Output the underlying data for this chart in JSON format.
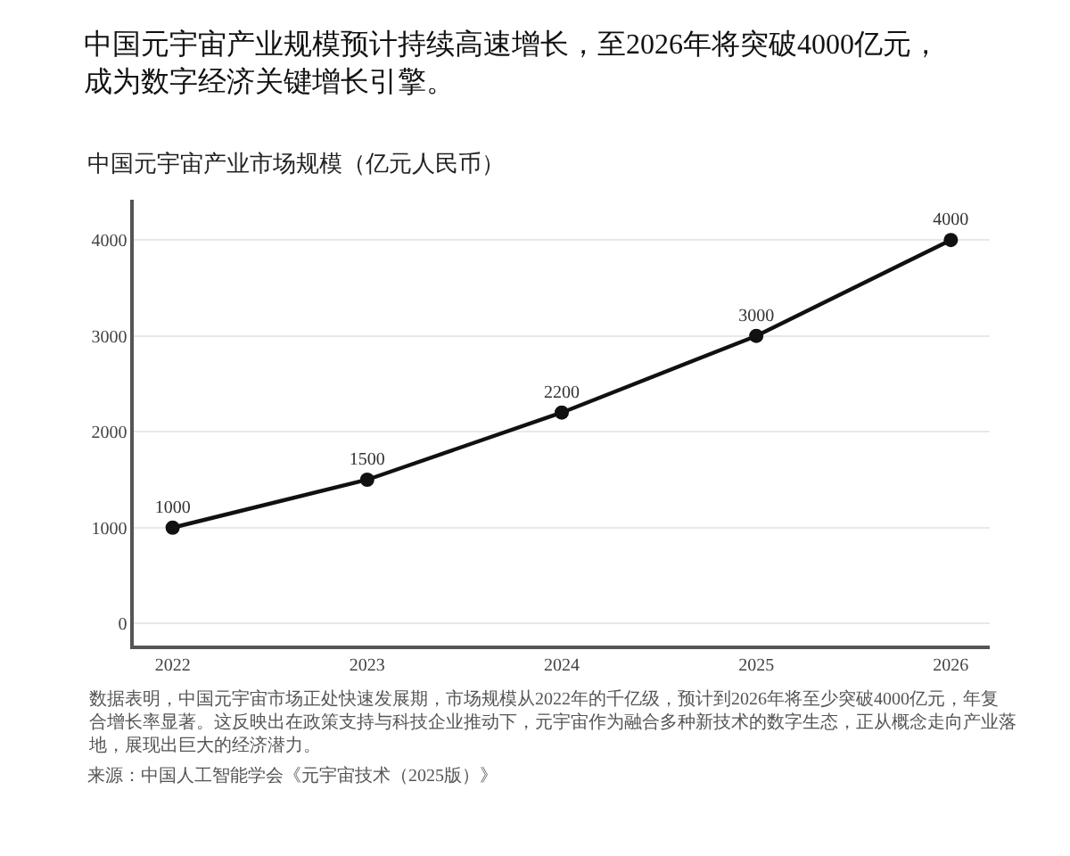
{
  "chart_data": {
    "type": "line",
    "title": "中国元宇宙产业规模预计持续高速增长，至2026年将突破4000亿元，成为数字经济关键增长引擎。",
    "subtitle": "中国元宇宙产业市场规模（亿元人民币）",
    "x": [
      2022,
      2023,
      2024,
      2025,
      2026
    ],
    "values": [
      1000,
      1500,
      2200,
      3000,
      4000
    ],
    "color": "#111111",
    "xlim": [
      2021.8,
      2026.2
    ],
    "xticks": [
      2022,
      2023,
      2024,
      2025,
      2026
    ],
    "ylim": [
      -230,
      4420
    ],
    "yticks": [
      0,
      1000,
      2000,
      3000,
      4000
    ],
    "grid": "y",
    "marker": "circle",
    "line_style": "solid",
    "data_labels": true,
    "annotations": [
      "数据表明，中国元宇宙市场正处快速发展期，市场规模从2022年的千亿级，预计到2026年将至少突破4000亿元，年复合增长率显著。这反映出在政策支持与科技企业推动下，元宇宙作为融合多种新技术的数字生态，正从概念走向产业落地，展现出巨大的经济潜力。",
      "来源：中国人工智能学会《元宇宙技术（2025版）》"
    ]
  }
}
